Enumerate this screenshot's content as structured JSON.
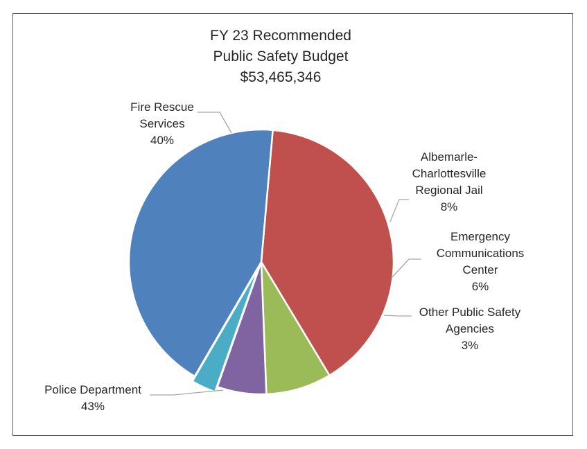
{
  "chart_data": {
    "type": "pie",
    "title": [
      "FY 23 Recommended",
      "Public Safety Budget",
      "$53,465,346"
    ],
    "slices": [
      {
        "name": [
          "Fire Rescue",
          "Services"
        ],
        "percent_label": "40%",
        "value": 40,
        "color": "#c0504d"
      },
      {
        "name": [
          "Albemarle-",
          "Charlottesville",
          "Regional Jail"
        ],
        "percent_label": "8%",
        "value": 8,
        "color": "#9bbb59"
      },
      {
        "name": [
          "Emergency",
          "Communications",
          "Center"
        ],
        "percent_label": "6%",
        "value": 6,
        "color": "#8064a2"
      },
      {
        "name": [
          "Other Public Safety",
          "Agencies"
        ],
        "percent_label": "3%",
        "value": 3,
        "color": "#4bacc6"
      },
      {
        "name": [
          "Police Department"
        ],
        "percent_label": "43%",
        "value": 43,
        "color": "#4f81bd"
      }
    ],
    "legend": "none",
    "data_labels": "outside-with-leader-lines"
  }
}
